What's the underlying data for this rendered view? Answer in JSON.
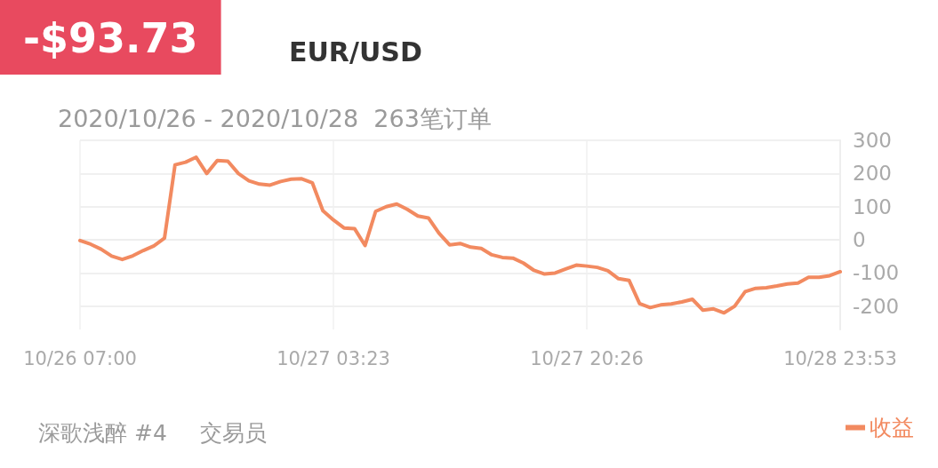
{
  "chart_data": {
    "type": "line",
    "title": "-$93.73",
    "subtitle": "EUR/USD",
    "annotations": [
      "2020/10/26 - 2020/10/28  263笔订单",
      "深歌浅醉 #4",
      "交易员"
    ],
    "categories": [
      "10/26 07:00",
      null,
      null,
      null,
      null,
      null,
      null,
      null,
      null,
      null,
      null,
      null,
      null,
      null,
      null,
      null,
      null,
      null,
      null,
      null,
      null,
      null,
      null,
      null,
      "10/27 03:23",
      null,
      null,
      null,
      null,
      null,
      null,
      null,
      null,
      null,
      null,
      null,
      null,
      null,
      null,
      null,
      null,
      null,
      null,
      null,
      null,
      null,
      null,
      null,
      "10/27 20:26",
      null,
      null,
      null,
      null,
      null,
      null,
      null,
      null,
      null,
      null,
      null,
      null,
      null,
      null,
      null,
      null,
      null,
      null,
      null,
      null,
      null,
      null,
      null,
      "10/28 23:53"
    ],
    "series": [
      {
        "name": "收益",
        "color": "#f28a60",
        "values": [
          -2,
          -13,
          -28,
          -49,
          -59,
          -48,
          -32,
          -18,
          5,
          226,
          234,
          249,
          200,
          239,
          237,
          200,
          178,
          168,
          165,
          176,
          183,
          184,
          172,
          88,
          60,
          36,
          34,
          -17,
          86,
          100,
          108,
          92,
          72,
          66,
          20,
          -15,
          -11,
          -22,
          -26,
          -45,
          -53,
          -55,
          -70,
          -92,
          -103,
          -100,
          -88,
          -76,
          -79,
          -83,
          -93,
          -117,
          -122,
          -192,
          -204,
          -196,
          -193,
          -187,
          -179,
          -212,
          -208,
          -220,
          -200,
          -156,
          -146,
          -144,
          -139,
          -133,
          -130,
          -113,
          -113,
          -108,
          -96
        ]
      }
    ],
    "ylim": [
      -270,
      300
    ],
    "yticks": [
      -200,
      -100,
      0,
      100,
      200,
      300
    ],
    "grid": true,
    "legend": "bottom right",
    "marker": "none",
    "line_style": "solid"
  }
}
